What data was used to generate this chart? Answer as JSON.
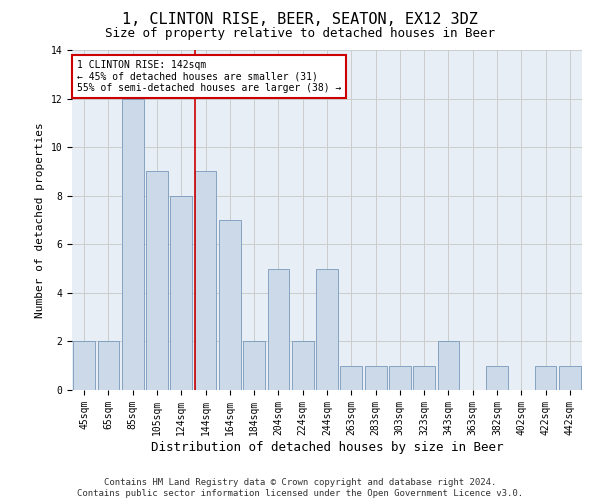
{
  "title": "1, CLINTON RISE, BEER, SEATON, EX12 3DZ",
  "subtitle": "Size of property relative to detached houses in Beer",
  "xlabel": "Distribution of detached houses by size in Beer",
  "ylabel": "Number of detached properties",
  "categories": [
    "45sqm",
    "65sqm",
    "85sqm",
    "105sqm",
    "124sqm",
    "144sqm",
    "164sqm",
    "184sqm",
    "204sqm",
    "224sqm",
    "244sqm",
    "263sqm",
    "283sqm",
    "303sqm",
    "323sqm",
    "343sqm",
    "363sqm",
    "382sqm",
    "402sqm",
    "422sqm",
    "442sqm"
  ],
  "values": [
    2,
    2,
    12,
    9,
    8,
    9,
    7,
    2,
    5,
    2,
    5,
    1,
    1,
    1,
    1,
    2,
    0,
    1,
    0,
    1,
    1
  ],
  "bar_color": "#ccd9e8",
  "bar_edge_color": "#7799bb",
  "annotation_line1": "1 CLINTON RISE: 142sqm",
  "annotation_line2": "← 45% of detached houses are smaller (31)",
  "annotation_line3": "55% of semi-detached houses are larger (38) →",
  "annotation_box_color": "#cc0000",
  "red_line_x": 4.57,
  "ylim": [
    0,
    14
  ],
  "yticks": [
    0,
    2,
    4,
    6,
    8,
    10,
    12,
    14
  ],
  "grid_color": "#cccccc",
  "bg_color": "#e8eef5",
  "footer1": "Contains HM Land Registry data © Crown copyright and database right 2024.",
  "footer2": "Contains public sector information licensed under the Open Government Licence v3.0.",
  "title_fontsize": 11,
  "subtitle_fontsize": 9,
  "xlabel_fontsize": 9,
  "ylabel_fontsize": 8,
  "tick_fontsize": 7,
  "annotation_fontsize": 7,
  "footer_fontsize": 6.5
}
